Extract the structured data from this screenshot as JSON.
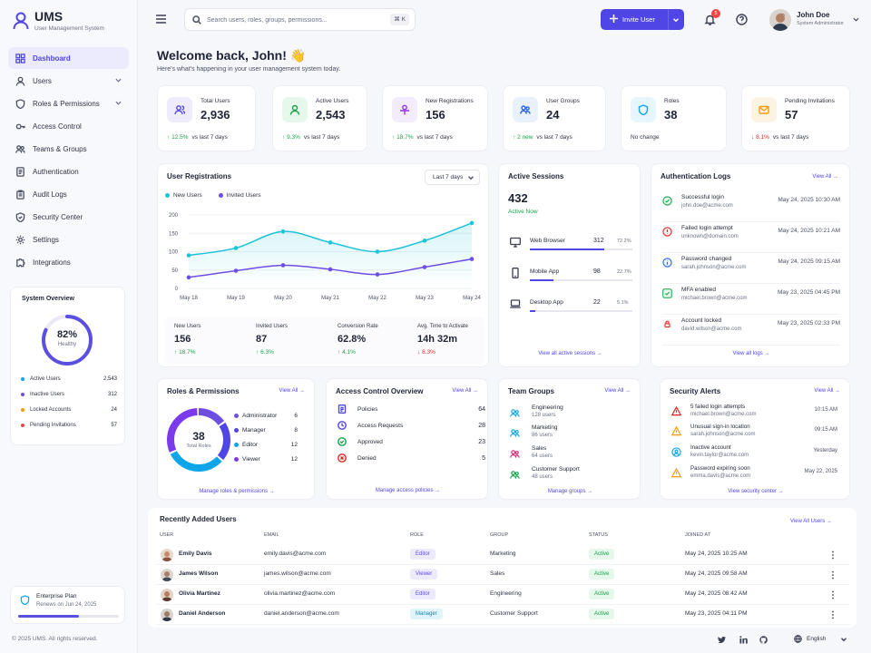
{
  "app": {
    "title": "UMS",
    "subtitle": "User Management System"
  },
  "nav": [
    {
      "label": "Dashboard",
      "icon": "grid-icon",
      "active": true
    },
    {
      "label": "Users",
      "icon": "users-icon",
      "expandable": true
    },
    {
      "label": "Roles & Permissions",
      "icon": "shield-icon",
      "expandable": true
    },
    {
      "label": "Access Control",
      "icon": "key-icon"
    },
    {
      "label": "Teams & Groups",
      "icon": "team-icon"
    },
    {
      "label": "Authentication",
      "icon": "document-icon"
    },
    {
      "label": "Audit Logs",
      "icon": "clipboard-icon"
    },
    {
      "label": "Security Center",
      "icon": "shield-check-icon"
    },
    {
      "label": "Settings",
      "icon": "gear-icon"
    },
    {
      "label": "Integrations",
      "icon": "puzzle-icon"
    }
  ],
  "system_overview": {
    "title": "System Overview",
    "health_value": "82%",
    "health_fraction": 0.82,
    "health_label": "Healthy",
    "rows": [
      {
        "label": "Active Users",
        "value": "2,543",
        "color": "#0ea5e9"
      },
      {
        "label": "Inactive Users",
        "value": "312",
        "color": "#6d4ee0"
      },
      {
        "label": "Locked Accounts",
        "value": "24",
        "color": "#f59e0b"
      },
      {
        "label": "Pending Invitations",
        "value": "57",
        "color": "#ef4444"
      }
    ]
  },
  "plan": {
    "title": "Enterprise Plan",
    "renews": "Renews on Jun 24, 2025",
    "progress": 0.6
  },
  "footer": {
    "copyright": "© 2025 UMS. All rights reserved.",
    "language": "English"
  },
  "topbar": {
    "search_placeholder": "Search users, roles, groups, permissions...",
    "shortcut": "⌘ K",
    "invite_label": "Invite User",
    "notifications": "5",
    "user_name": "John Doe",
    "user_role": "System Administrator"
  },
  "welcome": {
    "title": "Welcome back, John! 👋",
    "subtitle": "Here's what's happening in your user management system today."
  },
  "stats": [
    {
      "label": "Total Users",
      "value": "2,936",
      "change": "12.5%",
      "period": "vs last 7 days",
      "trend": "up"
    },
    {
      "label": "Active Users",
      "value": "2,543",
      "change": "9.3%",
      "period": "vs last 7 days",
      "trend": "up"
    },
    {
      "label": "New Registrations",
      "value": "156",
      "change": "18.7%",
      "period": "vs last 7 days",
      "trend": "up"
    },
    {
      "label": "User Groups",
      "value": "24",
      "change": "2 new",
      "period": "vs last 7 days",
      "trend": "up"
    },
    {
      "label": "Roles",
      "value": "38",
      "change": "",
      "period": "No change",
      "trend": "none"
    },
    {
      "label": "Pending Invitations",
      "value": "57",
      "change": "8.1%",
      "period": "vs last 7 days",
      "trend": "down"
    }
  ],
  "registrations": {
    "title": "User Registrations",
    "range_label": "Last 7 days",
    "mini": [
      {
        "label": "New Users",
        "value": "156",
        "change": "18.7%",
        "trend": "up"
      },
      {
        "label": "Invited Users",
        "value": "87",
        "change": "6.3%",
        "trend": "up"
      },
      {
        "label": "Conversion Rate",
        "value": "62.8%",
        "change": "4.1%",
        "trend": "up"
      },
      {
        "label": "Avg. Time to Activate",
        "value": "14h 32m",
        "change": "8.3%",
        "trend": "down"
      }
    ]
  },
  "chart_data": {
    "type": "line",
    "title": "User Registrations",
    "x": [
      "May 18",
      "May 19",
      "May 20",
      "May 21",
      "May 22",
      "May 23",
      "May 24"
    ],
    "yticks": [
      0,
      50,
      100,
      150,
      200
    ],
    "ylim": [
      0,
      200
    ],
    "grid": true,
    "legend": "top-left",
    "series": [
      {
        "name": "New Users",
        "color": "#1ec3d9",
        "values": [
          90,
          110,
          155,
          125,
          100,
          130,
          178
        ]
      },
      {
        "name": "Invited Users",
        "color": "#6d4ee0",
        "values": [
          30,
          48,
          63,
          52,
          38,
          58,
          80
        ]
      }
    ]
  },
  "sessions": {
    "title": "Active Sessions",
    "count": "432",
    "status": "Active Now",
    "rows": [
      {
        "label": "Web Browser",
        "count": "312",
        "pct": "72.2%",
        "fraction": 0.722,
        "icon": "monitor-icon"
      },
      {
        "label": "Mobile App",
        "count": "98",
        "pct": "22.7%",
        "fraction": 0.227,
        "icon": "phone-icon"
      },
      {
        "label": "Desktop App",
        "count": "22",
        "pct": "5.1%",
        "fraction": 0.051,
        "icon": "laptop-icon"
      }
    ],
    "link": "View all active sessions"
  },
  "auth_logs": {
    "title": "Authentication Logs",
    "view_all": "View All",
    "rows": [
      {
        "title": "Successful login",
        "email": "john.doe@acme.com",
        "date": "May 24, 2025 10:30 AM",
        "kind": "success"
      },
      {
        "title": "Failed login attempt",
        "email": "unknown@domain.com",
        "date": "May 24, 2025 10:21 AM",
        "kind": "error"
      },
      {
        "title": "Password changed",
        "email": "sarah.johnson@acme.com",
        "date": "May 24, 2025 09:15 AM",
        "kind": "info"
      },
      {
        "title": "MFA enabled",
        "email": "michael.brown@acme.com",
        "date": "May 23, 2025 04:45 PM",
        "kind": "success"
      },
      {
        "title": "Account locked",
        "email": "david.wilson@acme.com",
        "date": "May 23, 2025 02:33 PM",
        "kind": "lock"
      }
    ],
    "link": "View all logs"
  },
  "roles": {
    "title": "Roles & Permissions",
    "view_all": "View All",
    "total": "38",
    "total_label": "Total Roles",
    "rows": [
      {
        "label": "Administrator",
        "value": 6,
        "color": "#6d4ee0"
      },
      {
        "label": "Manager",
        "value": 8,
        "color": "#5046e5"
      },
      {
        "label": "Editor",
        "value": 12,
        "color": "#0ea5e9"
      },
      {
        "label": "Viewer",
        "value": 12,
        "color": "#7c3aed"
      }
    ],
    "link": "Manage roles & permissions"
  },
  "access": {
    "title": "Access Control Overview",
    "view_all": "View All",
    "rows": [
      {
        "label": "Policies",
        "value": "64",
        "color": "#5046e5"
      },
      {
        "label": "Access Requests",
        "value": "28",
        "color": "#5046e5"
      },
      {
        "label": "Approved",
        "value": "23",
        "color": "#16a34a"
      },
      {
        "label": "Denied",
        "value": "5",
        "color": "#dc2626"
      }
    ],
    "link": "Manage access policies"
  },
  "teams": {
    "title": "Team Groups",
    "view_all": "View All",
    "rows": [
      {
        "name": "Engineering",
        "count": "128 users",
        "color": "#0ea5e9"
      },
      {
        "name": "Marketing",
        "count": "86 users",
        "color": "#0ea5e9"
      },
      {
        "name": "Sales",
        "count": "64 users",
        "color": "#db2777"
      },
      {
        "name": "Customer Support",
        "count": "48 users",
        "color": "#16a34a"
      }
    ],
    "link": "Manage groups"
  },
  "alerts": {
    "title": "Security Alerts",
    "view_all": "View All",
    "rows": [
      {
        "title": "5 failed login attempts",
        "email": "michael.brown@acme.com",
        "date": "10:15 AM",
        "color": "#dc2626"
      },
      {
        "title": "Unusual sign-in location",
        "email": "sarah.johnson@acme.com",
        "date": "09:15 AM",
        "color": "#f59e0b"
      },
      {
        "title": "Inactive account",
        "email": "kevin.taylor@acme.com",
        "date": "Yesterday",
        "color": "#0ea5e9"
      },
      {
        "title": "Password expiring soon",
        "email": "emma.davis@acme.com",
        "date": "May 22, 2025",
        "color": "#f59e0b"
      }
    ],
    "link": "View security center"
  },
  "recent": {
    "title": "Recently Added Users",
    "view_all": "View All Users",
    "columns": [
      "USER",
      "EMAIL",
      "ROLE",
      "GROUP",
      "STATUS",
      "JOINED AT"
    ],
    "rows": [
      {
        "name": "Emily Davis",
        "email": "emily.davis@acme.com",
        "role": "Editor",
        "group": "Marketing",
        "status": "Active",
        "joined": "May 24, 2025 10:25 AM",
        "avatar_color": "#c98a6b"
      },
      {
        "name": "James Wilson",
        "email": "james.wilson@acme.com",
        "role": "Viewer",
        "group": "Sales",
        "status": "Active",
        "joined": "May 24, 2025 09:58 AM",
        "avatar_color": "#7a6a5e"
      },
      {
        "name": "Olivia Martinez",
        "email": "olivia.martinez@acme.com",
        "role": "Editor",
        "group": "Engineering",
        "status": "Active",
        "joined": "May 24, 2025 08:42 AM",
        "avatar_color": "#8b5a46"
      },
      {
        "name": "Daniel Anderson",
        "email": "daniel.anderson@acme.com",
        "role": "Manager",
        "group": "Customer Support",
        "status": "Active",
        "joined": "May 23, 2025 04:11 PM",
        "avatar_color": "#6b5a50"
      }
    ]
  }
}
